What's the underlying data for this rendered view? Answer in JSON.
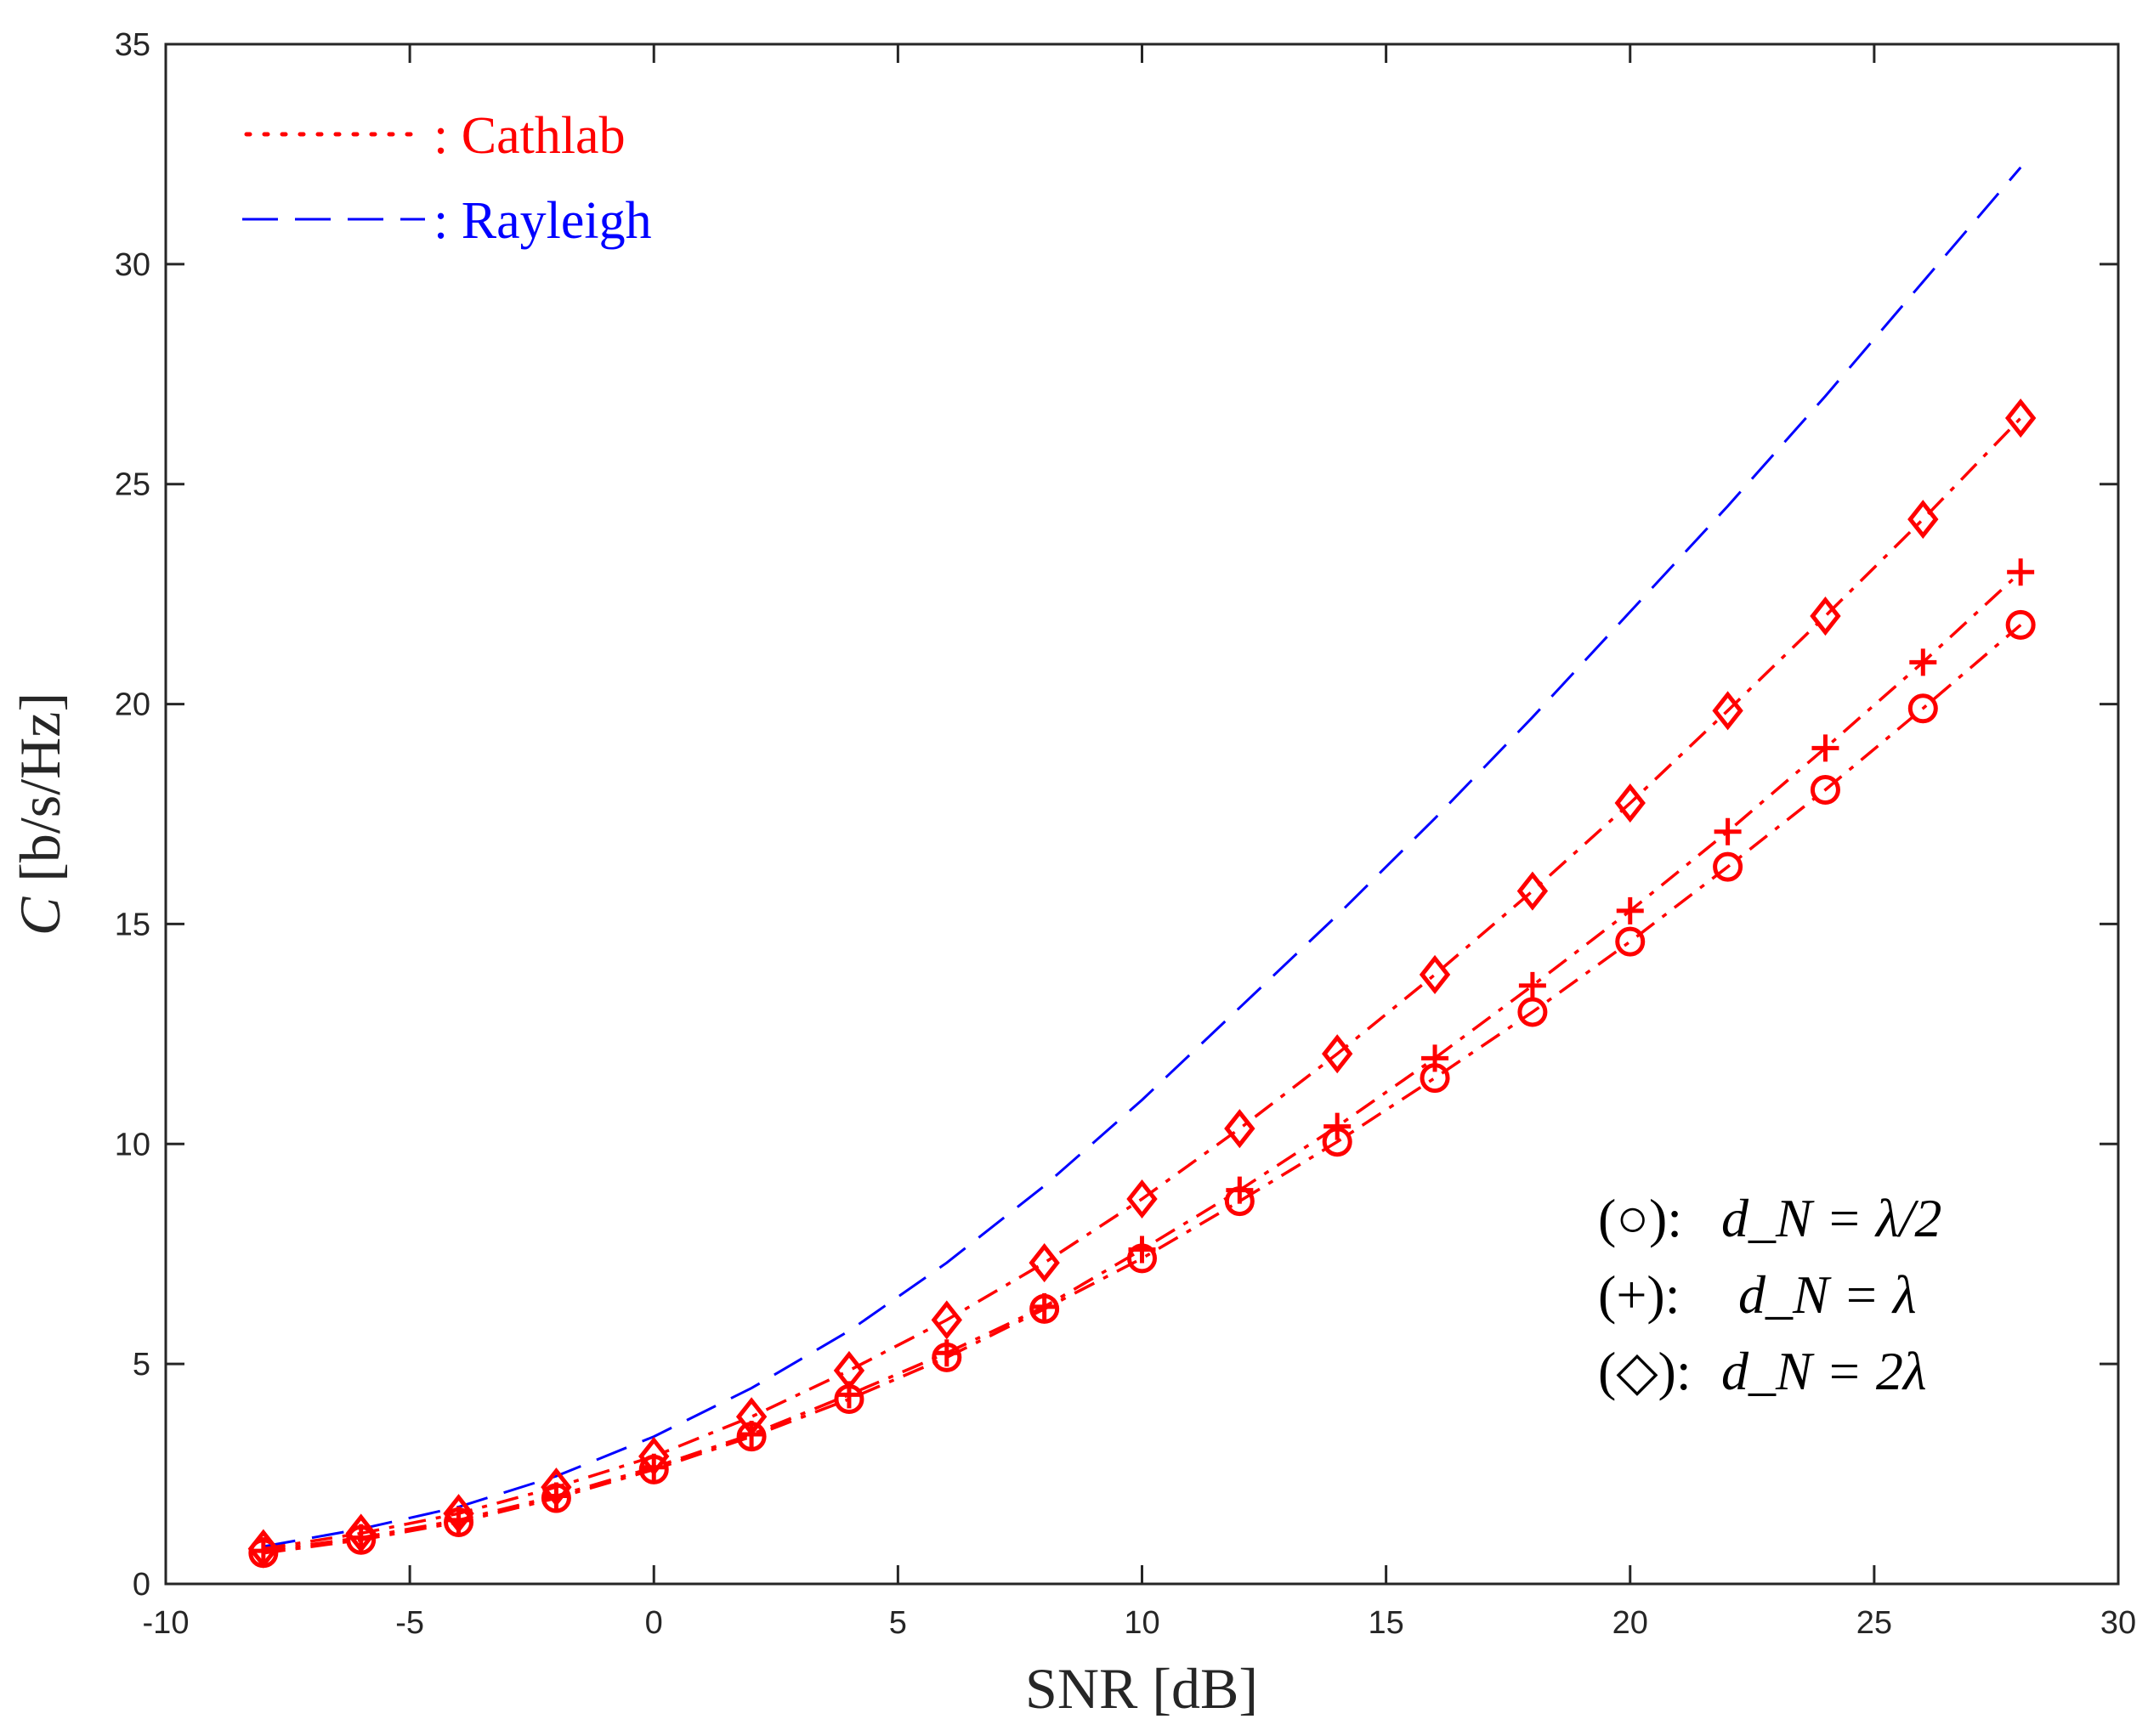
{
  "chart_data": {
    "type": "line",
    "xlabel": "SNR [dB]",
    "ylabel_symbol": "C",
    "ylabel_units": "[b/s/Hz]",
    "xlim": [
      -10,
      30
    ],
    "ylim": [
      0,
      35
    ],
    "xticks": [
      -10,
      -5,
      0,
      5,
      10,
      15,
      20,
      25,
      30
    ],
    "yticks": [
      0,
      5,
      10,
      15,
      20,
      25,
      30,
      35
    ],
    "grid": false,
    "legend": {
      "location": "top-left",
      "entries": [
        {
          "sample": "dotted",
          "label": ": Cathlab",
          "color": "#ff0000"
        },
        {
          "sample": "dashed",
          "label": ": Rayleigh",
          "color": "#0000ff"
        }
      ]
    },
    "annotations": [
      {
        "marker": "(○):",
        "text": "d_N = λ/2"
      },
      {
        "marker": "(+):",
        "text": "d_N = λ"
      },
      {
        "marker": "(◇):",
        "text": "d_N = 2λ"
      }
    ],
    "series": [
      {
        "name": "Rayleigh",
        "color": "#0000ff",
        "style": "dashed",
        "marker": "none",
        "x": [
          -8,
          -6,
          -4,
          -2,
          0,
          2,
          4,
          6,
          8,
          10,
          12,
          14,
          16,
          18,
          20,
          22,
          24,
          26,
          28
        ],
        "values": [
          0.85,
          1.25,
          1.75,
          2.45,
          3.35,
          4.45,
          5.75,
          7.3,
          9.05,
          11.0,
          13.1,
          15.2,
          17.4,
          19.7,
          22.1,
          24.5,
          27.0,
          29.6,
          32.2
        ]
      },
      {
        "name": "Cathlab d_N = 2λ",
        "color": "#ff0000",
        "style": "dashdot",
        "marker": "diamond",
        "x": [
          -8,
          -6,
          -4,
          -2,
          0,
          2,
          4,
          6,
          8,
          10,
          12,
          14,
          16,
          18,
          20,
          22,
          24,
          26,
          28
        ],
        "values": [
          0.8,
          1.15,
          1.6,
          2.2,
          2.9,
          3.8,
          4.85,
          6.0,
          7.3,
          8.75,
          10.35,
          12.05,
          13.85,
          15.75,
          17.75,
          19.85,
          22.0,
          24.2,
          26.5
        ]
      },
      {
        "name": "Cathlab d_N = λ",
        "color": "#ff0000",
        "style": "dashdot",
        "marker": "plus",
        "x": [
          -8,
          -6,
          -4,
          -2,
          0,
          2,
          4,
          6,
          8,
          10,
          12,
          14,
          16,
          18,
          20,
          22,
          24,
          26,
          28
        ],
        "values": [
          0.75,
          1.05,
          1.45,
          2.0,
          2.65,
          3.4,
          4.3,
          5.25,
          6.3,
          7.6,
          8.95,
          10.4,
          11.95,
          13.6,
          15.3,
          17.1,
          19.0,
          20.95,
          23.0
        ]
      },
      {
        "name": "Cathlab d_N = λ/2",
        "color": "#ff0000",
        "style": "dashdot",
        "marker": "circle",
        "x": [
          -8,
          -6,
          -4,
          -2,
          0,
          2,
          4,
          6,
          8,
          10,
          12,
          14,
          16,
          18,
          20,
          22,
          24,
          26,
          28
        ],
        "values": [
          0.7,
          1.0,
          1.4,
          1.95,
          2.6,
          3.35,
          4.2,
          5.15,
          6.25,
          7.4,
          8.7,
          10.05,
          11.5,
          13.0,
          14.6,
          16.3,
          18.05,
          19.9,
          21.8
        ]
      }
    ]
  }
}
